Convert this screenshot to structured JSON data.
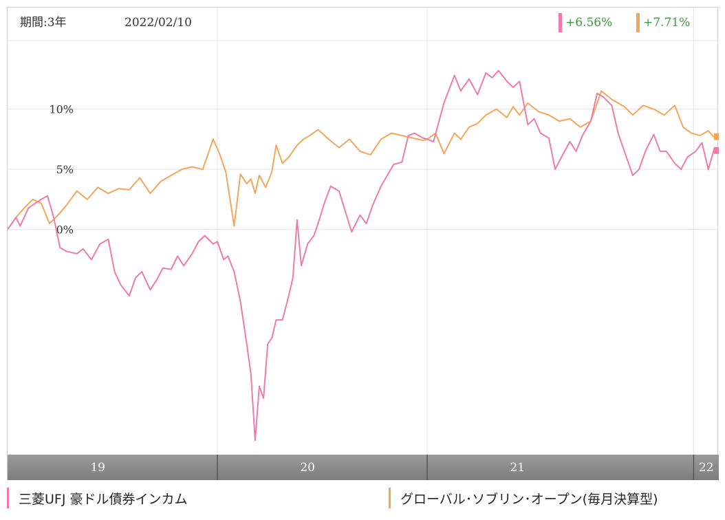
{
  "header": {
    "period_label": "期間:3年",
    "date_label": "2022/02/10"
  },
  "returns": [
    {
      "value": "+6.56%",
      "color": "#f07aa8"
    },
    {
      "value": "+7.71%",
      "color": "#f5a55a"
    }
  ],
  "legend": [
    {
      "label": "三菱UFJ 豪ドル債券インカム",
      "color": "#f07aa8"
    },
    {
      "label": "グローバル･ソブリン･オープン(毎月決算型)",
      "color": "#f5a55a"
    }
  ],
  "colors": {
    "return_text": "#3a9a3a",
    "grid": "#e3e3e3",
    "year_band": "#7d7d7d"
  },
  "chart_data": {
    "type": "line",
    "title": "",
    "xlabel": "",
    "ylabel": "",
    "ylim": [
      -18,
      15
    ],
    "xlim": [
      2018.72,
      2022.11
    ],
    "y_ticks": [
      {
        "value": 10,
        "label": "10%"
      },
      {
        "value": 5,
        "label": "5%"
      },
      {
        "value": 0,
        "label": "0%"
      }
    ],
    "year_labels": [
      {
        "label": "19",
        "x": 2019.15
      },
      {
        "label": "20",
        "x": 2020.15
      },
      {
        "label": "21",
        "x": 2021.15
      },
      {
        "label": "22",
        "x": 2022.05
      }
    ],
    "year_boundaries": [
      2019.72,
      2020.72,
      2021.99
    ],
    "grid": true,
    "series": [
      {
        "name": "三菱UFJ 豪ドル債券インカム",
        "color": "#f07aa8",
        "x": [
          2018.72,
          2018.76,
          2018.78,
          2018.82,
          2018.88,
          2018.91,
          2018.94,
          2018.97,
          2019.0,
          2019.05,
          2019.08,
          2019.12,
          2019.16,
          2019.2,
          2019.23,
          2019.26,
          2019.3,
          2019.33,
          2019.36,
          2019.4,
          2019.43,
          2019.46,
          2019.5,
          2019.53,
          2019.56,
          2019.6,
          2019.63,
          2019.66,
          2019.7,
          2019.72,
          2019.75,
          2019.77,
          2019.8,
          2019.83,
          2019.86,
          2019.88,
          2019.9,
          2019.92,
          2019.94,
          2019.96,
          2019.98,
          2020.0,
          2020.03,
          2020.06,
          2020.08,
          2020.1,
          2020.12,
          2020.15,
          2020.18,
          2020.2,
          2020.23,
          2020.26,
          2020.3,
          2020.33,
          2020.36,
          2020.4,
          2020.43,
          2020.46,
          2020.5,
          2020.53,
          2020.56,
          2020.6,
          2020.63,
          2020.66,
          2020.7,
          2020.72,
          2020.75,
          2020.8,
          2020.85,
          2020.88,
          2020.92,
          2020.96,
          2021.0,
          2021.03,
          2021.06,
          2021.1,
          2021.13,
          2021.16,
          2021.2,
          2021.23,
          2021.26,
          2021.3,
          2021.33,
          2021.36,
          2021.4,
          2021.43,
          2021.46,
          2021.5,
          2021.53,
          2021.56,
          2021.6,
          2021.63,
          2021.66,
          2021.7,
          2021.73,
          2021.76,
          2021.8,
          2021.83,
          2021.86,
          2021.9,
          2021.93,
          2021.96,
          2022.0,
          2022.03,
          2022.06,
          2022.09,
          2022.11
        ],
        "y": [
          0.0,
          1.0,
          0.3,
          1.8,
          2.5,
          2.8,
          1.0,
          -1.5,
          -1.8,
          -2.0,
          -1.6,
          -2.5,
          -1.2,
          -0.8,
          -3.5,
          -4.6,
          -5.5,
          -4.0,
          -3.5,
          -5.0,
          -4.2,
          -3.2,
          -3.3,
          -2.2,
          -3.0,
          -2.0,
          -1.0,
          -0.5,
          -1.2,
          -1.0,
          -2.5,
          -2.2,
          -3.5,
          -6.0,
          -9.5,
          -12.0,
          -17.5,
          -13.0,
          -14.0,
          -9.5,
          -9.0,
          -7.5,
          -7.5,
          -5.5,
          -4.0,
          0.8,
          -3.0,
          -1.2,
          -0.5,
          0.5,
          2.2,
          3.6,
          3.2,
          1.5,
          -0.2,
          1.2,
          0.5,
          2.0,
          3.6,
          4.5,
          5.4,
          5.6,
          7.8,
          8.0,
          7.6,
          7.5,
          7.3,
          10.5,
          12.8,
          11.5,
          12.5,
          11.2,
          13.0,
          12.6,
          13.2,
          12.3,
          11.8,
          12.3,
          8.7,
          9.2,
          8.0,
          7.6,
          5.0,
          6.0,
          7.3,
          6.5,
          7.8,
          9.0,
          11.3,
          11.0,
          10.3,
          8.0,
          6.5,
          4.5,
          5.0,
          6.5,
          7.9,
          6.5,
          6.5,
          5.5,
          5.0,
          6.0,
          6.5,
          7.2,
          5.0,
          6.8,
          6.56
        ]
      },
      {
        "name": "グローバル･ソブリン･オープン(毎月決算型)",
        "color": "#f5a55a",
        "x": [
          2018.72,
          2018.76,
          2018.8,
          2018.84,
          2018.88,
          2018.92,
          2018.95,
          2019.0,
          2019.05,
          2019.1,
          2019.15,
          2019.2,
          2019.25,
          2019.3,
          2019.35,
          2019.4,
          2019.45,
          2019.5,
          2019.55,
          2019.6,
          2019.65,
          2019.7,
          2019.73,
          2019.76,
          2019.8,
          2019.83,
          2019.86,
          2019.88,
          2019.9,
          2019.92,
          2019.95,
          2019.98,
          2020.0,
          2020.03,
          2020.06,
          2020.1,
          2020.13,
          2020.16,
          2020.2,
          2020.25,
          2020.3,
          2020.35,
          2020.4,
          2020.45,
          2020.5,
          2020.55,
          2020.6,
          2020.65,
          2020.7,
          2020.72,
          2020.76,
          2020.8,
          2020.85,
          2020.88,
          2020.92,
          2020.96,
          2021.0,
          2021.05,
          2021.1,
          2021.13,
          2021.16,
          2021.2,
          2021.25,
          2021.3,
          2021.35,
          2021.4,
          2021.45,
          2021.5,
          2021.55,
          2021.6,
          2021.63,
          2021.66,
          2021.7,
          2021.75,
          2021.8,
          2021.85,
          2021.9,
          2021.94,
          2021.98,
          2022.02,
          2022.06,
          2022.09,
          2022.11
        ],
        "y": [
          0.0,
          1.0,
          1.8,
          2.5,
          2.2,
          0.5,
          1.0,
          2.0,
          3.2,
          2.5,
          3.5,
          3.0,
          3.4,
          3.3,
          4.3,
          3.0,
          4.0,
          4.5,
          5.0,
          5.2,
          5.0,
          7.5,
          6.3,
          4.8,
          0.3,
          4.6,
          3.8,
          4.2,
          3.0,
          4.5,
          3.5,
          4.8,
          7.0,
          5.5,
          6.0,
          7.0,
          7.5,
          7.8,
          8.3,
          7.5,
          6.8,
          7.5,
          6.5,
          6.2,
          7.5,
          8.0,
          7.8,
          7.6,
          7.4,
          7.5,
          8.0,
          6.3,
          8.0,
          7.5,
          8.5,
          8.8,
          9.5,
          10.0,
          9.3,
          10.2,
          9.5,
          10.5,
          9.8,
          9.5,
          9.0,
          9.2,
          8.5,
          9.0,
          11.5,
          10.8,
          10.5,
          10.2,
          9.5,
          10.3,
          10.0,
          9.5,
          10.3,
          8.5,
          8.0,
          7.8,
          8.2,
          7.6,
          7.71
        ]
      }
    ]
  }
}
